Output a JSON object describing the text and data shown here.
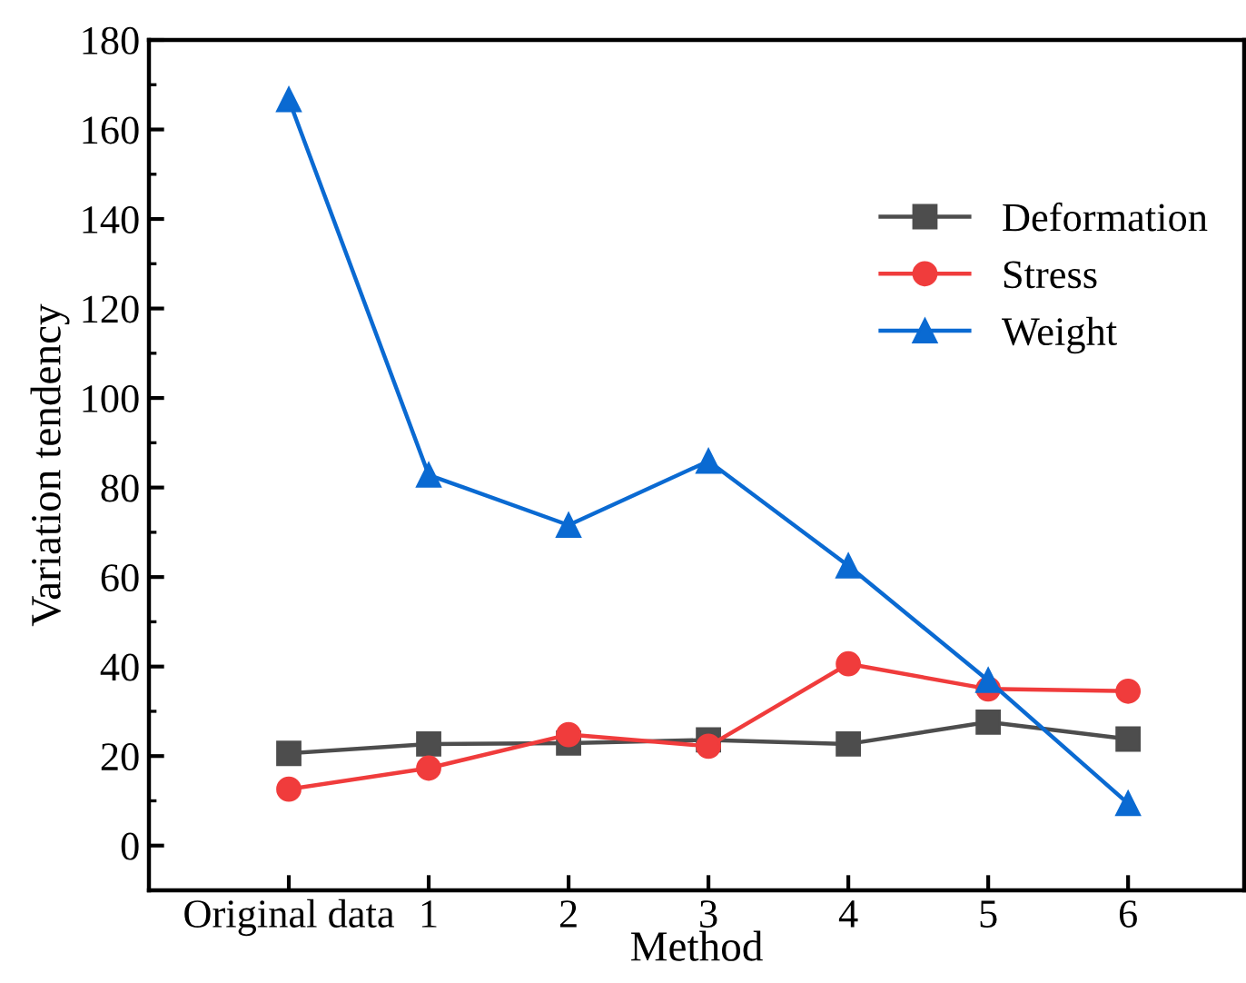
{
  "chart_data": {
    "type": "line",
    "xlabel": "Method",
    "ylabel": "Variation tendency",
    "categories": [
      "Original data",
      "1",
      "2",
      "3",
      "4",
      "5",
      "6"
    ],
    "series": [
      {
        "name": "Deformation",
        "color": "#4d4d4d",
        "marker": "square",
        "values": [
          20.6,
          22.7,
          22.9,
          23.6,
          22.7,
          27.6,
          23.8
        ]
      },
      {
        "name": "Stress",
        "color": "#f03c3c",
        "marker": "circle",
        "values": [
          12.6,
          17.3,
          24.8,
          22.2,
          40.6,
          35.0,
          34.5
        ]
      },
      {
        "name": "Weight",
        "color": "#0a6ad2",
        "marker": "triangle",
        "values": [
          166.7,
          82.8,
          71.6,
          85.9,
          62.5,
          36.9,
          9.4
        ]
      }
    ],
    "ylim": [
      -10,
      180
    ],
    "yticks": [
      0,
      20,
      40,
      60,
      80,
      100,
      120,
      140,
      160,
      180
    ],
    "grid": false,
    "legend": "right",
    "line_style": "solid"
  }
}
